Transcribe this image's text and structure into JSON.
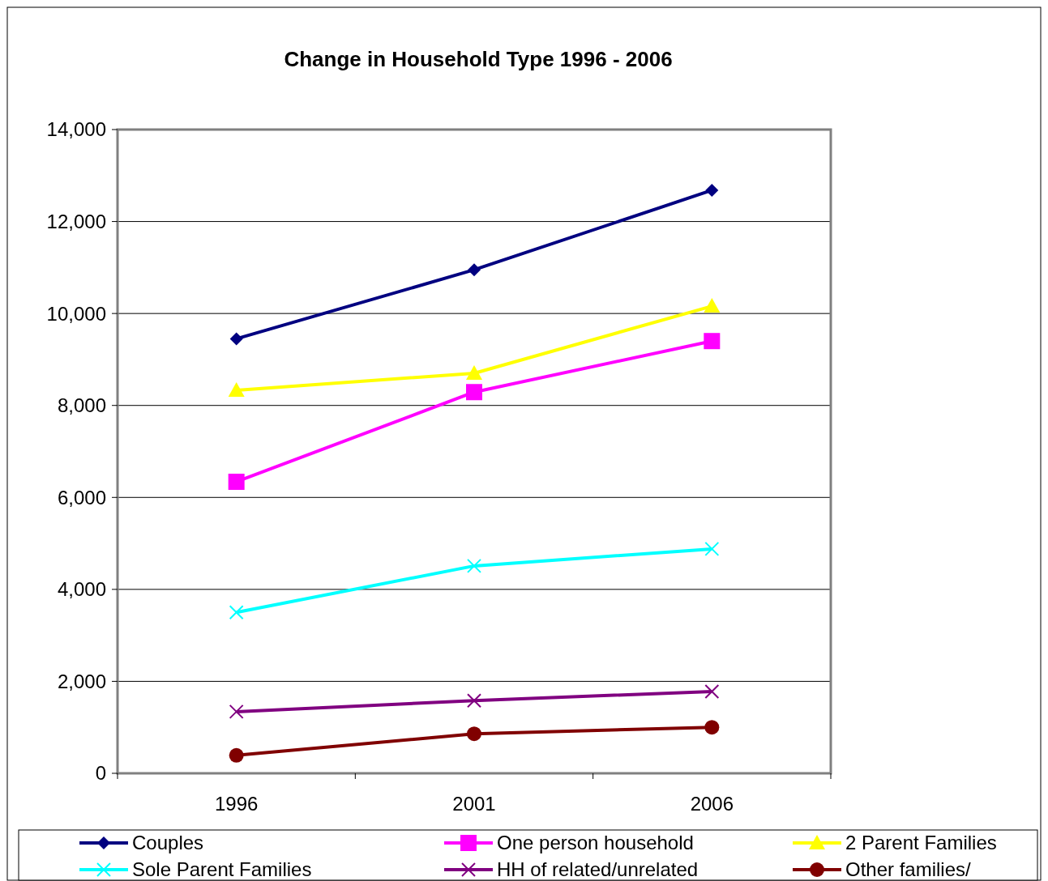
{
  "chart_data": {
    "type": "line",
    "title": "Change in Household Type 1996 - 2006",
    "categories": [
      "1996",
      "2001",
      "2006"
    ],
    "series": [
      {
        "name": "Couples",
        "color": "#000080",
        "marker": "diamond",
        "values": [
          9450,
          10950,
          12680
        ]
      },
      {
        "name": "One person household",
        "color": "#ff00ff",
        "marker": "square",
        "values": [
          6340,
          8290,
          9400
        ]
      },
      {
        "name": "2 Parent Families",
        "color": "#ffff00",
        "marker": "triangle",
        "values": [
          8330,
          8700,
          10160
        ]
      },
      {
        "name": "Sole Parent Families",
        "color": "#00ffff",
        "marker": "cross",
        "values": [
          3500,
          4510,
          4880
        ]
      },
      {
        "name": "HH of related/unrelated",
        "color": "#800080",
        "marker": "cross",
        "values": [
          1340,
          1580,
          1780
        ]
      },
      {
        "name": "Other families/",
        "color": "#800000",
        "marker": "circle",
        "values": [
          390,
          860,
          1000
        ]
      }
    ],
    "ylim": [
      0,
      14000
    ],
    "yticks": [
      {
        "value": 0,
        "label": "0"
      },
      {
        "value": 2000,
        "label": "2,000"
      },
      {
        "value": 4000,
        "label": "4,000"
      },
      {
        "value": 6000,
        "label": "6,000"
      },
      {
        "value": 8000,
        "label": "8,000"
      },
      {
        "value": 10000,
        "label": "10,000"
      },
      {
        "value": 12000,
        "label": "12,000"
      },
      {
        "value": 14000,
        "label": "14,000"
      }
    ],
    "grid": "y",
    "legend": "bottom",
    "line_style": "solid"
  }
}
